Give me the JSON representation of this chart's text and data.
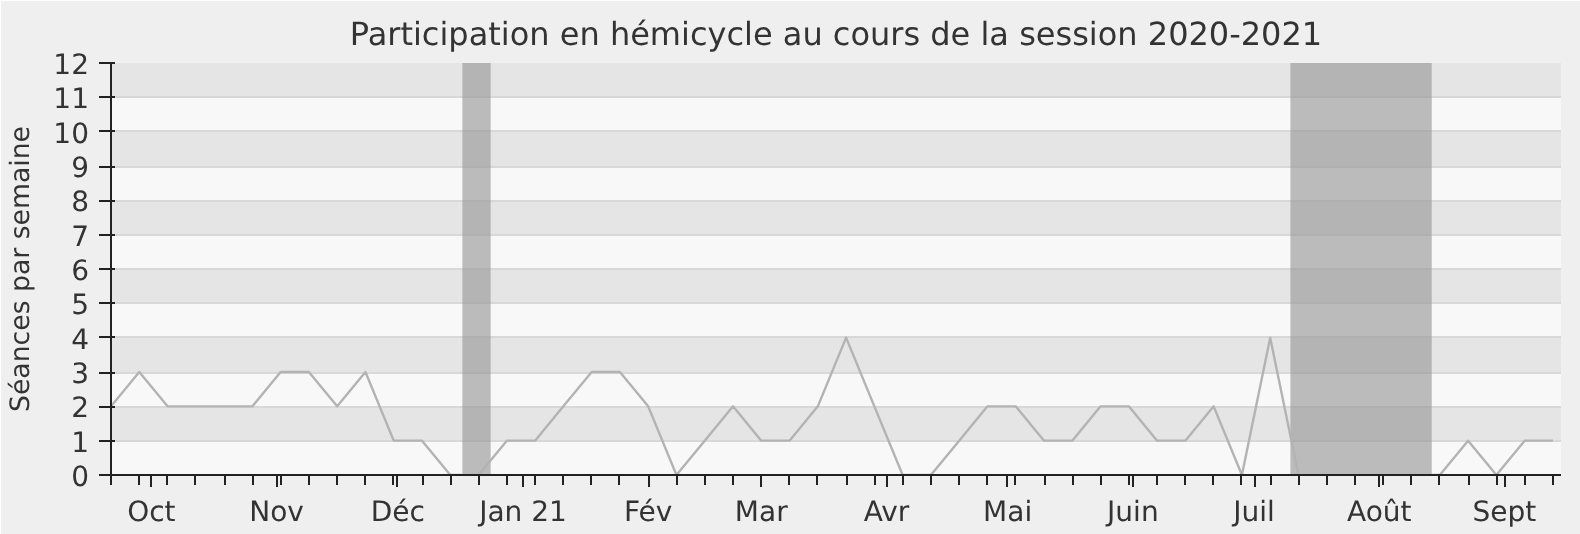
{
  "chart_data": {
    "type": "line",
    "title": "Participation en hémicycle au cours de la session 2020-2021",
    "ylabel": "Séances par semaine",
    "x": [
      "2020-09-21",
      "2020-09-28",
      "2020-10-05",
      "2020-10-12",
      "2020-10-19",
      "2020-10-26",
      "2020-11-02",
      "2020-11-09",
      "2020-11-16",
      "2020-11-23",
      "2020-11-30",
      "2020-12-07",
      "2020-12-14",
      "2020-12-21",
      "2020-12-28",
      "2021-01-04",
      "2021-01-11",
      "2021-01-18",
      "2021-01-25",
      "2021-02-01",
      "2021-02-08",
      "2021-02-15",
      "2021-02-22",
      "2021-03-01",
      "2021-03-08",
      "2021-03-15",
      "2021-03-22",
      "2021-03-29",
      "2021-04-05",
      "2021-04-12",
      "2021-04-19",
      "2021-04-26",
      "2021-05-03",
      "2021-05-10",
      "2021-05-17",
      "2021-05-24",
      "2021-05-31",
      "2021-06-07",
      "2021-06-14",
      "2021-06-21",
      "2021-06-28",
      "2021-07-05",
      "2021-07-12",
      "2021-07-19",
      "2021-07-26",
      "2021-08-02",
      "2021-08-09",
      "2021-08-16",
      "2021-08-23",
      "2021-08-30",
      "2021-09-06",
      "2021-09-13"
    ],
    "series": [
      {
        "color": "#b3b3b3",
        "values": [
          2,
          3,
          2,
          2,
          2,
          2,
          3,
          3,
          2,
          3,
          1,
          1,
          0,
          0,
          1,
          1,
          2,
          3,
          3,
          2,
          0,
          1,
          2,
          1,
          1,
          2,
          4,
          2,
          0,
          0,
          1,
          2,
          2,
          1,
          1,
          2,
          2,
          1,
          1,
          2,
          0,
          4,
          0,
          0,
          0,
          0,
          0,
          0,
          1,
          0,
          1,
          1
        ]
      }
    ],
    "xlim": [
      "2020-09-21",
      "2021-09-15"
    ],
    "ylim": [
      0,
      12
    ],
    "xticks": [
      {
        "value": "2020-10-01",
        "label": "Oct"
      },
      {
        "value": "2020-11-01",
        "label": "Nov"
      },
      {
        "value": "2020-12-01",
        "label": "Déc"
      },
      {
        "value": "2021-01-01",
        "label": "Jan 21"
      },
      {
        "value": "2021-02-01",
        "label": "Fév"
      },
      {
        "value": "2021-03-01",
        "label": "Mar"
      },
      {
        "value": "2021-04-01",
        "label": "Avr"
      },
      {
        "value": "2021-05-01",
        "label": "Mai"
      },
      {
        "value": "2021-06-01",
        "label": "Juin"
      },
      {
        "value": "2021-07-01",
        "label": "Juil"
      },
      {
        "value": "2021-08-01",
        "label": "Août"
      },
      {
        "value": "2021-09-01",
        "label": "Sept"
      }
    ],
    "yticks": [
      0,
      1,
      2,
      3,
      4,
      5,
      6,
      7,
      8,
      9,
      10,
      11,
      12
    ],
    "bands": [
      {
        "axis": "x",
        "from": "2020-12-17",
        "to": "2020-12-24",
        "color": "#999999"
      },
      {
        "axis": "x",
        "from": "2021-07-10",
        "to": "2021-08-14",
        "color": "#999999"
      }
    ],
    "grid": "y",
    "marker": "none",
    "line_style": "solid"
  }
}
